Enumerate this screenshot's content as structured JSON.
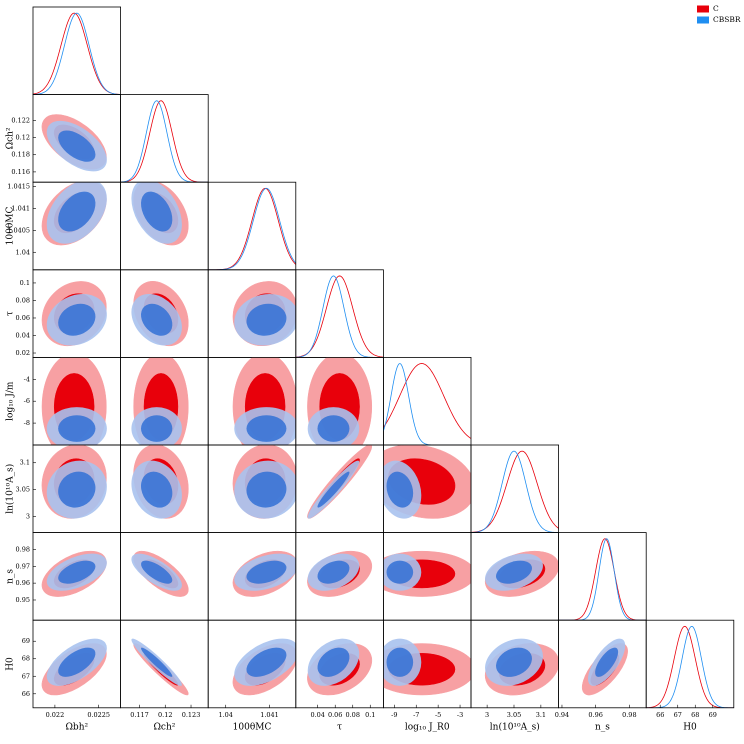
{
  "chart_data": {
    "type": "corner",
    "legend": "upper right",
    "parameters": [
      {
        "xlabel": "Ωbh²",
        "lim": [
          0.02175,
          0.02275
        ],
        "xticks": [
          0.022,
          0.0225
        ]
      },
      {
        "xlabel": "Ωch²",
        "ylabel": "Ωch²",
        "lim": [
          0.1148,
          0.125
        ],
        "xticks": [
          0.117,
          0.12,
          0.123
        ],
        "yticks": [
          0.116,
          0.118,
          0.12,
          0.122
        ]
      },
      {
        "xlabel": "100θMC",
        "ylabel": "100θMC",
        "lim": [
          1.0396,
          1.0416
        ],
        "xticks": [
          1.04,
          1.041
        ],
        "yticks": [
          1.04,
          1.0405,
          1.041,
          1.0415
        ]
      },
      {
        "xlabel": "τ",
        "ylabel": "τ",
        "lim": [
          0.015,
          0.115
        ],
        "xticks": [
          0.04,
          0.06,
          0.08,
          0.1
        ],
        "yticks": [
          0.02,
          0.04,
          0.06,
          0.08,
          0.1
        ]
      },
      {
        "xlabel": "log₁₀ J_R0",
        "ylabel": "log₁₀ J/m",
        "lim": [
          -10,
          -2
        ],
        "xticks": [
          -9,
          -7,
          -5,
          -3
        ],
        "yticks": [
          -8,
          -6,
          -4
        ]
      },
      {
        "xlabel": "ln(10¹⁰A_s)",
        "ylabel": "ln(10¹⁰A_s)",
        "lim": [
          2.97,
          3.133
        ],
        "xticks": [
          3,
          3.05,
          3.1
        ],
        "yticks": [
          3,
          3.05,
          3.1
        ]
      },
      {
        "xlabel": "n_s",
        "ylabel": "n_s",
        "lim": [
          0.938,
          0.99
        ],
        "xticks": [
          0.94,
          0.96,
          0.98
        ],
        "yticks": [
          0.95,
          0.96,
          0.97,
          0.98
        ]
      },
      {
        "xlabel": "H0",
        "ylabel": "H0",
        "lim": [
          65.2,
          70.2
        ],
        "xticks": [
          66,
          67,
          68,
          69
        ],
        "yticks": [
          66,
          67,
          68,
          69
        ]
      }
    ],
    "series": [
      {
        "name": "C",
        "color": "#e8000b",
        "mean": [
          0.02222,
          0.1195,
          1.0409,
          0.065,
          -6.5,
          3.065,
          0.9655,
          67.4
        ],
        "sigma": [
          0.00015,
          0.0013,
          0.0003,
          0.015,
          2.0,
          0.028,
          0.0055,
          0.6
        ]
      },
      {
        "name": "CBSBR",
        "color": "#1f8ef1",
        "mean": [
          0.02225,
          0.119,
          1.04093,
          0.058,
          -8.5,
          3.05,
          0.9665,
          67.8
        ],
        "sigma": [
          0.00014,
          0.0012,
          0.0003,
          0.012,
          0.8,
          0.022,
          0.0045,
          0.55
        ]
      }
    ],
    "correlations": [
      -0.55,
      0.4,
      -0.4,
      0.2,
      -0.3,
      0.1,
      0,
      0,
      0,
      0,
      0.1,
      -0.2,
      0.05,
      0.95,
      -0.2,
      0.5,
      -0.7,
      0.4,
      0.35,
      0,
      0.35,
      0.6,
      -0.95,
      0.5,
      0.35,
      0,
      0.25,
      0.7
    ]
  }
}
